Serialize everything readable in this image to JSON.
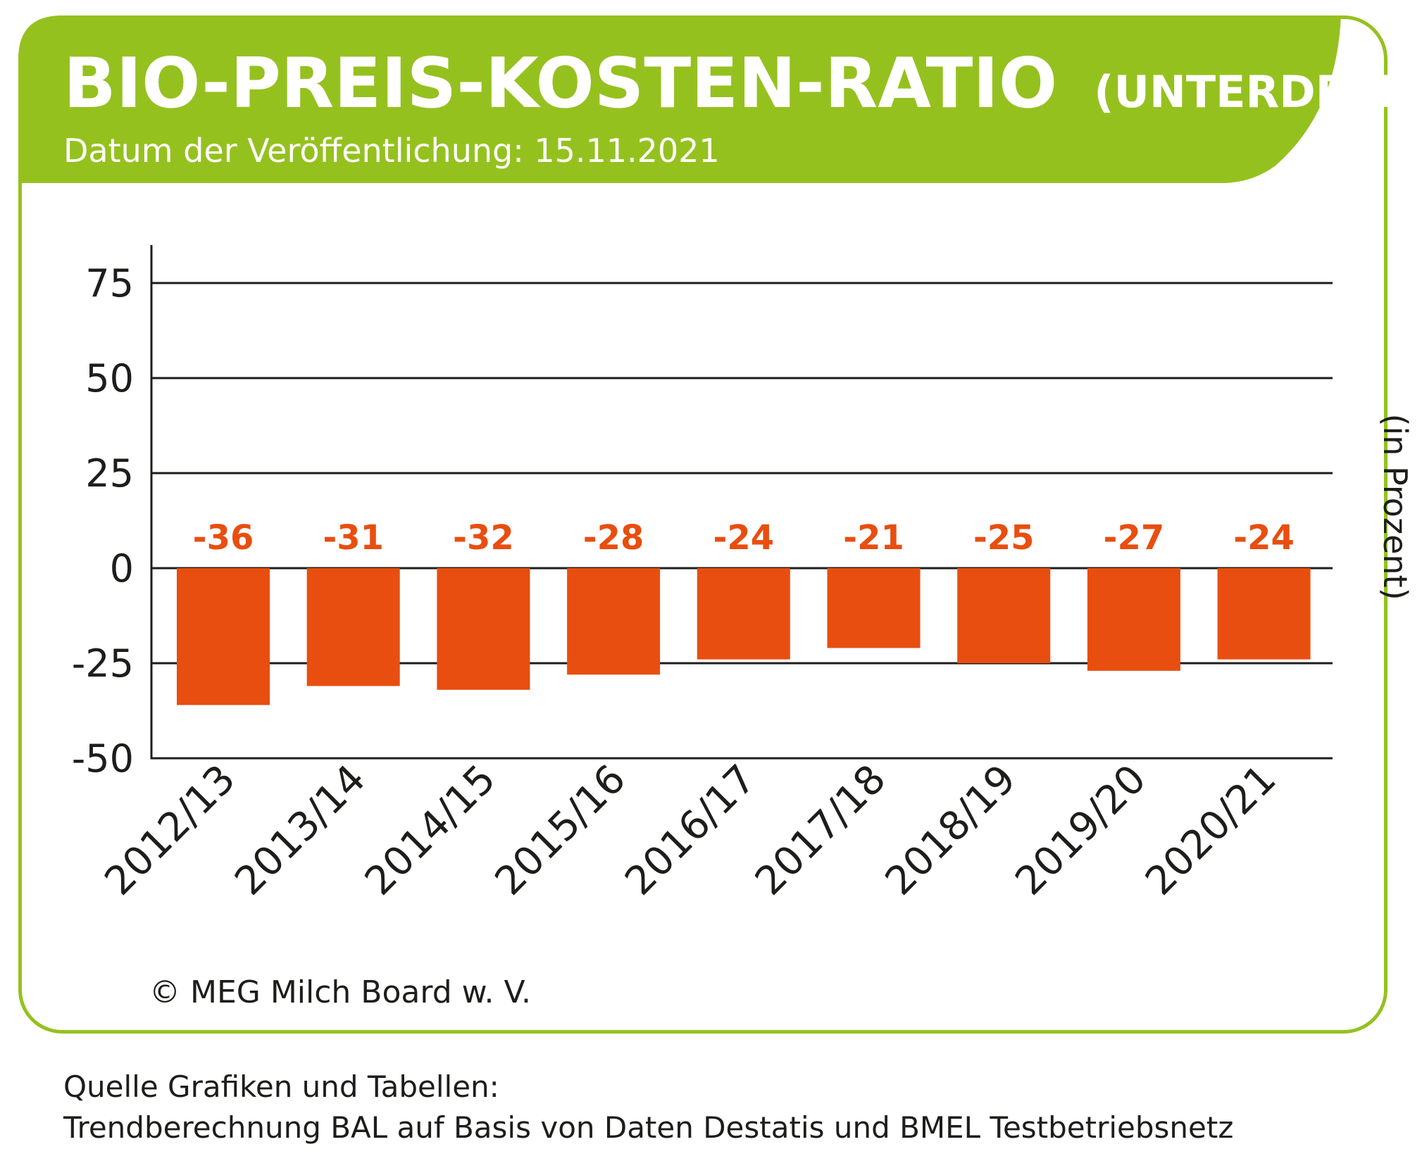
{
  "header": {
    "title": "BIO-PREIS-KOSTEN-RATIO",
    "title_suffix": "(UNTERDECKUNG)",
    "subtitle": "Datum der Veröffentlichung: 15.11.2021"
  },
  "colors": {
    "accent_green": "#95c11f",
    "bar_orange": "#e84e0f",
    "text": "#1d1d1b"
  },
  "chart_data": {
    "type": "bar",
    "categories": [
      "2012/13",
      "2013/14",
      "2014/15",
      "2015/16",
      "2016/17",
      "2017/18",
      "2018/19",
      "2019/20",
      "2020/21"
    ],
    "values": [
      -36,
      -31,
      -32,
      -28,
      -24,
      -21,
      -25,
      -27,
      -24
    ],
    "value_labels": [
      "-36",
      "-31",
      "-32",
      "-28",
      "-24",
      "-21",
      "-25",
      "-27",
      "-24"
    ],
    "ylabel": "(in Prozent)",
    "ylim": [
      -50,
      85
    ],
    "yticks": [
      75,
      50,
      25,
      0,
      -25,
      -50
    ],
    "ytick_labels": [
      "75",
      "50",
      "25",
      "0",
      "-25",
      "-50"
    ],
    "grid": true
  },
  "footer": {
    "copyright": "© MEG Milch Board w. V.",
    "source_line1": "Quelle Grafiken und Tabellen:",
    "source_line2": "Trendberechnung BAL auf Basis von Daten Destatis und BMEL Testbetriebsnetz"
  }
}
